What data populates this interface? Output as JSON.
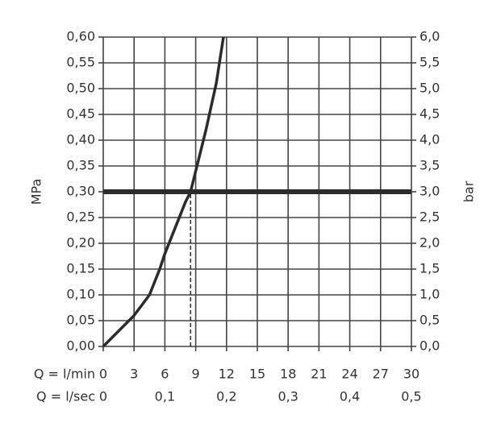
{
  "chart_data": {
    "type": "line",
    "xlabel": "Q = l/min",
    "x2label": "Q = l/sec",
    "ylabel": "MPa",
    "y2label": "bar",
    "xlim": [
      0,
      30
    ],
    "xticks": [
      0,
      3,
      6,
      9,
      12,
      15,
      18,
      21,
      24,
      27,
      30
    ],
    "x2lim": [
      0,
      0.5
    ],
    "x2ticks": [
      {
        "value": 0,
        "label": "0"
      },
      {
        "value": 0.1,
        "label": "0,1"
      },
      {
        "value": 0.2,
        "label": "0,2"
      },
      {
        "value": 0.3,
        "label": "0,3"
      },
      {
        "value": 0.4,
        "label": "0,4"
      },
      {
        "value": 0.5,
        "label": "0,5"
      }
    ],
    "ylim": [
      0,
      0.6
    ],
    "yticks": [
      {
        "value": 0,
        "label": "0,00"
      },
      {
        "value": 0.05,
        "label": "0,05"
      },
      {
        "value": 0.1,
        "label": "0,10"
      },
      {
        "value": 0.15,
        "label": "0,15"
      },
      {
        "value": 0.2,
        "label": "0,20"
      },
      {
        "value": 0.25,
        "label": "0,25"
      },
      {
        "value": 0.3,
        "label": "0,30"
      },
      {
        "value": 0.35,
        "label": "0,35"
      },
      {
        "value": 0.4,
        "label": "0,40"
      },
      {
        "value": 0.45,
        "label": "0,45"
      },
      {
        "value": 0.5,
        "label": "0,50"
      },
      {
        "value": 0.55,
        "label": "0,55"
      },
      {
        "value": 0.6,
        "label": "0,60"
      }
    ],
    "y2lim": [
      0,
      6
    ],
    "y2ticks": [
      {
        "value": 0,
        "label": "0,0"
      },
      {
        "value": 0.5,
        "label": "0,5"
      },
      {
        "value": 1,
        "label": "1,0"
      },
      {
        "value": 1.5,
        "label": "1,5"
      },
      {
        "value": 2,
        "label": "2,0"
      },
      {
        "value": 2.5,
        "label": "2,5"
      },
      {
        "value": 3,
        "label": "3,0"
      },
      {
        "value": 3.5,
        "label": "3,5"
      },
      {
        "value": 4,
        "label": "4,0"
      },
      {
        "value": 4.5,
        "label": "4,5"
      },
      {
        "value": 5,
        "label": "5,0"
      },
      {
        "value": 5.5,
        "label": "5,5"
      },
      {
        "value": 6,
        "label": "6,0"
      }
    ],
    "grid": true,
    "reference_y": 0.3,
    "reference_x": 8.5,
    "series": [
      {
        "color": "#2b2b2b",
        "x": [
          0,
          2,
          3,
          4.5,
          5.5,
          6,
          7,
          8,
          8.5,
          9,
          10,
          11,
          11.7
        ],
        "values": [
          0,
          0.04,
          0.06,
          0.1,
          0.15,
          0.18,
          0.23,
          0.28,
          0.3,
          0.34,
          0.42,
          0.51,
          0.6
        ]
      }
    ]
  }
}
